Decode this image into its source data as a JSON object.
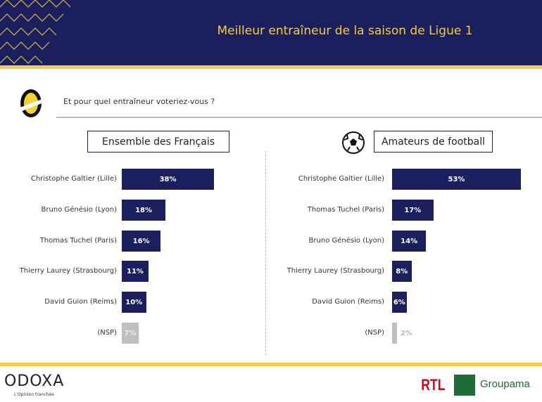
{
  "header": {
    "title": "Meilleur entraîneur de la saison de Ligue 1"
  },
  "question": "Et pour quel entraîneur voteriez-vous ?",
  "colors": {
    "bar": "#1b1f5e",
    "nsp": "#bfbfbf",
    "accent": "#f2cc4a"
  },
  "chart_data": [
    {
      "type": "bar",
      "orientation": "horizontal",
      "title": "Ensemble des Français",
      "unit": "%",
      "categories": [
        "Christophe Galtier (Lille)",
        "Bruno Génésio (Lyon)",
        "Thomas Tuchel (Paris)",
        "Thierry Laurey (Strasbourg)",
        "David Guion (Reims)",
        "(NSP)"
      ],
      "values": [
        38,
        18,
        16,
        11,
        10,
        7
      ],
      "labels": [
        "38%",
        "18%",
        "16%",
        "11%",
        "10%",
        "7%"
      ]
    },
    {
      "type": "bar",
      "orientation": "horizontal",
      "title": "Amateurs de football",
      "unit": "%",
      "categories": [
        "Christophe Galtier (Lille)",
        "Thomas Tuchel (Paris)",
        "Bruno Génésio (Lyon)",
        "Thierry Laurey (Strasbourg)",
        "David Guion (Reims)",
        "(NSP)"
      ],
      "values": [
        53,
        17,
        14,
        8,
        6,
        2
      ],
      "labels": [
        "53%",
        "17%",
        "14%",
        "8%",
        "6%",
        "2%"
      ]
    }
  ],
  "footer": {
    "brand": "ODOXA",
    "tagline": "L'Opinion tranchée",
    "partner1": "RTL",
    "partner2": "Groupama"
  }
}
